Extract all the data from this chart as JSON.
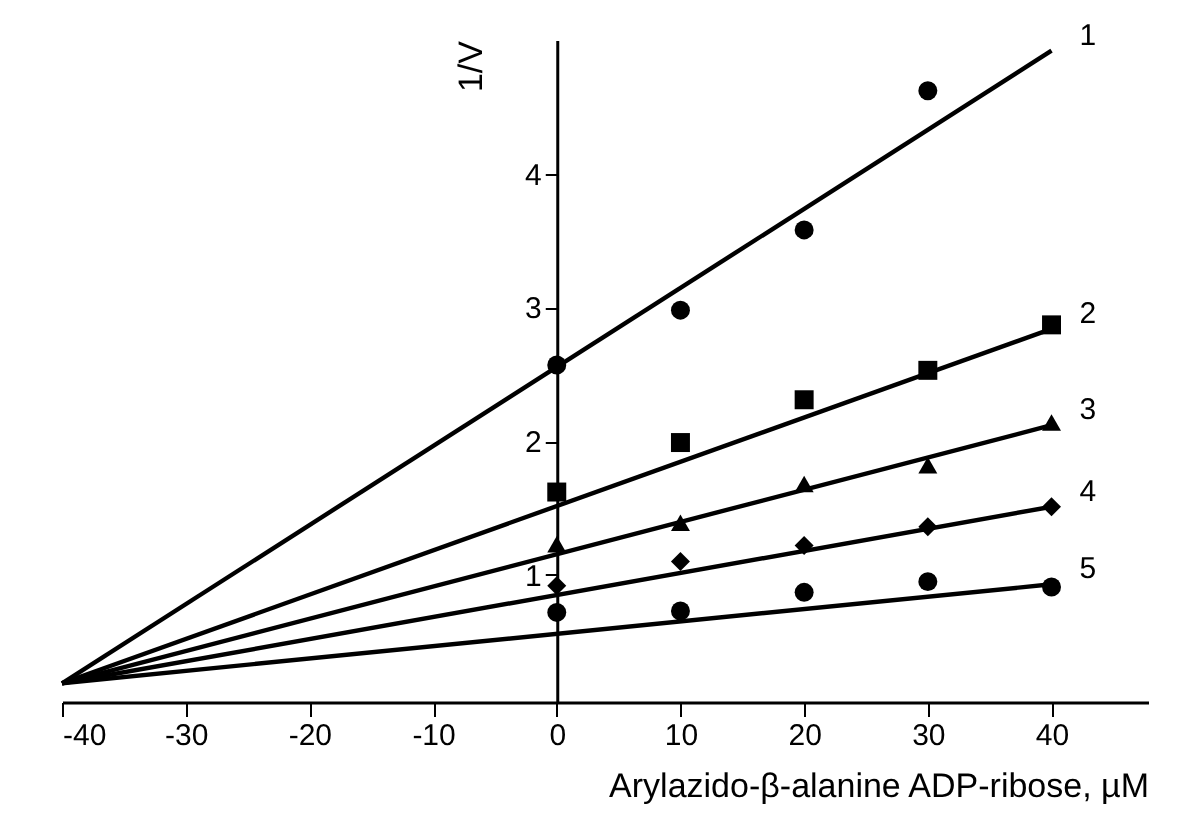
{
  "chart_data": {
    "type": "scatter",
    "xlabel": "Arylazido-β-alanine ADP-ribose, µM",
    "ylabel": "1/V",
    "xlim": [
      -40,
      47.8
    ],
    "ylim": [
      0.05,
      5.0
    ],
    "xticks": [
      -40,
      -30,
      -20,
      -10,
      0,
      10,
      20,
      30,
      40
    ],
    "yticks": [
      1,
      2,
      3,
      4
    ],
    "grid": false,
    "series": [
      {
        "type": "scatter",
        "marker": "circle",
        "color": "#000000",
        "x": [
          0,
          10,
          20,
          30
        ],
        "values": [
          2.57,
          2.98,
          3.58,
          4.62
        ]
      },
      {
        "type": "scatter",
        "marker": "square",
        "color": "#000000",
        "x": [
          0,
          10,
          20,
          30,
          40
        ],
        "values": [
          1.62,
          1.99,
          2.31,
          2.53,
          2.87
        ]
      },
      {
        "type": "scatter",
        "marker": "triangle",
        "color": "#000000",
        "x": [
          0,
          10,
          20,
          30,
          40
        ],
        "values": [
          1.23,
          1.39,
          1.68,
          1.82,
          2.14
        ]
      },
      {
        "type": "scatter",
        "marker": "diamond",
        "color": "#000000",
        "x": [
          0,
          10,
          20,
          30,
          40
        ],
        "values": [
          0.92,
          1.1,
          1.22,
          1.36,
          1.51
        ]
      },
      {
        "type": "scatter",
        "marker": "circle",
        "color": "#000000",
        "x": [
          0,
          10,
          20,
          30,
          40
        ],
        "values": [
          0.72,
          0.73,
          0.87,
          0.95,
          0.91
        ]
      },
      {
        "type": "line",
        "name": "1",
        "color": "#000000",
        "x": [
          -40,
          40
        ],
        "values": [
          0.19,
          4.92
        ]
      },
      {
        "type": "line",
        "name": "2",
        "color": "#000000",
        "x": [
          -40,
          40
        ],
        "values": [
          0.19,
          2.84
        ]
      },
      {
        "type": "line",
        "name": "3",
        "color": "#000000",
        "x": [
          -40,
          40
        ],
        "values": [
          0.19,
          2.12
        ]
      },
      {
        "type": "line",
        "name": "4",
        "color": "#000000",
        "x": [
          -40,
          40
        ],
        "values": [
          0.19,
          1.51
        ]
      },
      {
        "type": "line",
        "name": "5",
        "color": "#000000",
        "x": [
          -40,
          40
        ],
        "values": [
          0.19,
          0.93
        ]
      }
    ]
  }
}
